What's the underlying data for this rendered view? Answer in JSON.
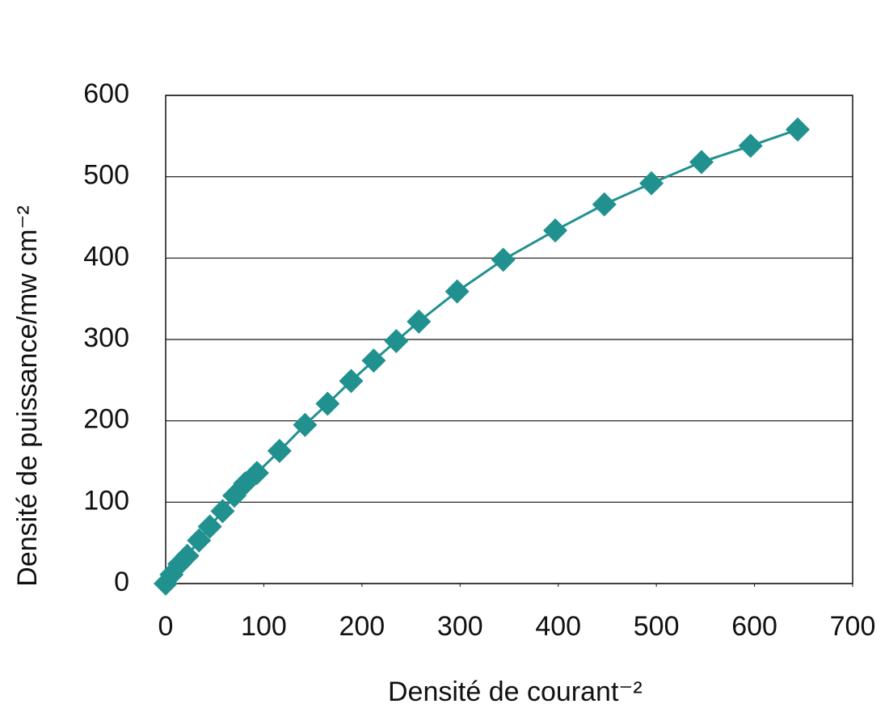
{
  "chart_data": {
    "type": "line",
    "x_label": "Densité de courant⁻²",
    "y_label": "Densité de puissance/mw cm⁻²",
    "x": [
      0,
      6,
      14,
      22,
      34,
      45,
      58,
      70,
      81,
      93,
      116,
      142,
      165,
      189,
      212,
      235,
      258,
      297,
      344,
      397,
      447,
      495,
      546,
      596,
      644
    ],
    "series": [
      {
        "color": "#21918f",
        "values": [
          0,
          11,
          24,
          34,
          53,
          70,
          89,
          108,
          123,
          136,
          163,
          195,
          221,
          249,
          274,
          298,
          322,
          359,
          398,
          434,
          466,
          492,
          518,
          538,
          558
        ]
      }
    ],
    "xlim": [
      0,
      700
    ],
    "xticks": [
      0,
      100,
      200,
      300,
      400,
      500,
      600,
      700
    ],
    "ylim": [
      0,
      600
    ],
    "yticks": [
      0,
      100,
      200,
      300,
      400,
      500,
      600
    ],
    "grid": true
  }
}
